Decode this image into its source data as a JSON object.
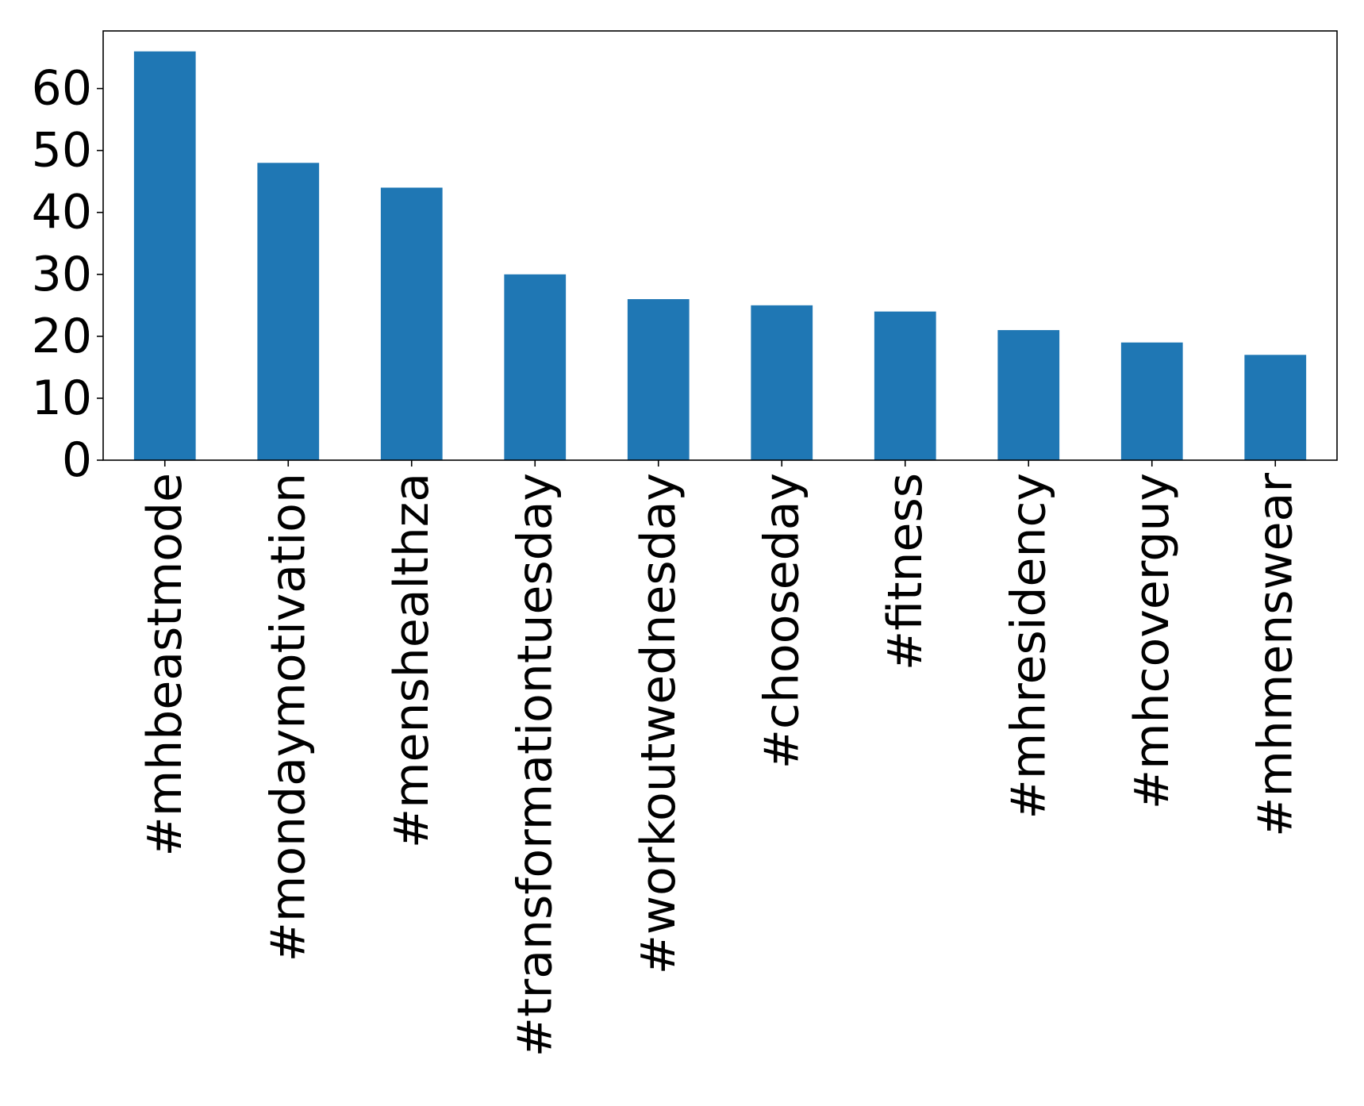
{
  "chart_data": {
    "type": "bar",
    "categories": [
      "#mhbeastmode",
      "#mondaymotivation",
      "#menshealthza",
      "#transformationtuesday",
      "#workoutwednesday",
      "#chooseday",
      "#fitness",
      "#mhresidency",
      "#mhcoverguy",
      "#mhmenswear"
    ],
    "values": [
      66,
      48,
      44,
      30,
      26,
      25,
      24,
      21,
      19,
      17
    ],
    "title": "",
    "xlabel": "",
    "ylabel": "",
    "ylim": [
      0,
      69.3
    ],
    "yticks": [
      0,
      10,
      20,
      30,
      40,
      50,
      60
    ],
    "ytick_labels": [
      "0",
      "10",
      "20",
      "30",
      "40",
      "50",
      "60"
    ],
    "bar_color": "#1f77b4",
    "grid": false,
    "legend": "none"
  }
}
